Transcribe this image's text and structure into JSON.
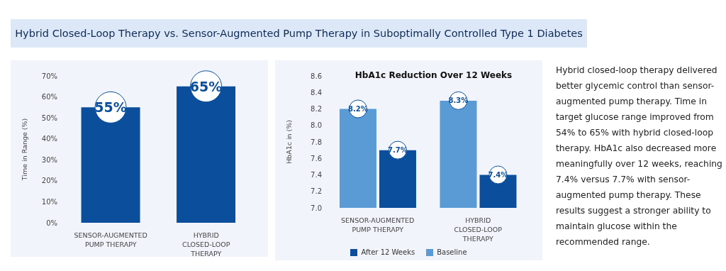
{
  "chart_data": [
    {
      "type": "bar",
      "title": "Hybrid Closed-Loop Therapy vs. Sensor-Augmented Pump Therapy in Suboptimally Controlled Type 1 Diabetes",
      "ylabel": "Time in Range (%)",
      "categories": [
        "SENSOR-AUGMENTED PUMP THERAPY",
        "HYBRID CLOSED-LOOP THERAPY"
      ],
      "series": [
        {
          "color": "#0b4f9c",
          "values": [
            55,
            65
          ],
          "value_labels": [
            "55%",
            "65%"
          ]
        }
      ],
      "ylim": [
        0,
        70
      ],
      "yticks": [
        {
          "value": 0,
          "label": "0%"
        },
        {
          "value": 10,
          "label": "10%"
        },
        {
          "value": 20,
          "label": "20%"
        },
        {
          "value": 30,
          "label": "30%"
        },
        {
          "value": 40,
          "label": "40%"
        },
        {
          "value": 50,
          "label": "50%"
        },
        {
          "value": 60,
          "label": "60%"
        },
        {
          "value": 70,
          "label": "70%"
        }
      ],
      "legend": false
    },
    {
      "type": "bar",
      "title": "HbA1c Reduction Over 12 Weeks",
      "ylabel": "HbA1c in (%)",
      "categories": [
        "SENSOR-AUGMENTED PUMP THERAPY",
        "HYBRID CLOSED-LOOP THERAPY"
      ],
      "series": [
        {
          "name": "Baseline",
          "color": "#5b9bd5",
          "values": [
            8.2,
            8.3
          ],
          "value_labels": [
            "8.2%",
            "8.3%"
          ]
        },
        {
          "name": "After 12 Weeks",
          "color": "#0b4f9c",
          "values": [
            7.7,
            7.4
          ],
          "value_labels": [
            "7.7%",
            "7.4%"
          ]
        }
      ],
      "ylim": [
        7.0,
        8.6
      ],
      "yticks": [
        {
          "value": 7,
          "label": "7.0"
        },
        7.2,
        7.4,
        7.6,
        7.8,
        {
          "value": 8,
          "label": "8.0"
        },
        8.2,
        8.4,
        8.6
      ],
      "legend": "bottom"
    },
    {
      "type": "other",
      "annotations": [
        "Hybrid closed-loop therapy delivered better glycemic control than sensor-augmented pump therapy. Time in target glucose range improved from 54% to 65% with hybrid closed-loop therapy. HbA1c also decreased more meaningfully over 12 weeks, reaching 7.4% versus 7.7% with sensor-augmented pump therapy. These results suggest a stronger ability to maintain glucose within the recommended range."
      ]
    }
  ]
}
